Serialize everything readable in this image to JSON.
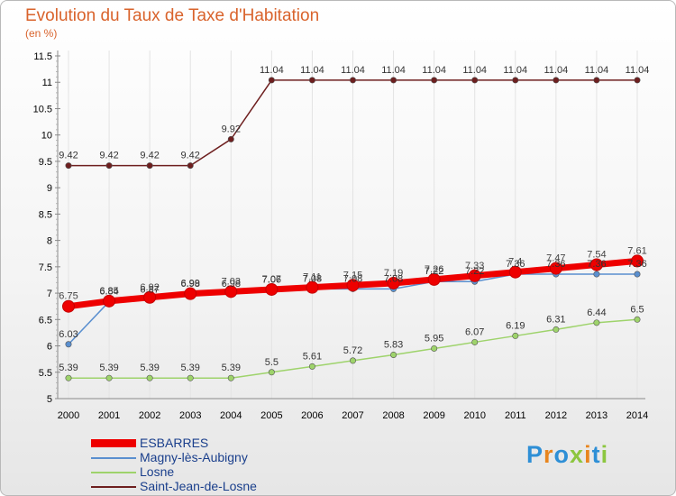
{
  "title": "Evolution du Taux de Taxe d'Habitation",
  "unit": "(en %)",
  "logo": "Proxiti",
  "chart_data": {
    "type": "line",
    "title": "Evolution du Taux de Taxe d'Habitation",
    "ylabel": "(en %)",
    "xlabel": "",
    "ylim": [
      5,
      11.5
    ],
    "yticks": [
      5,
      5.5,
      6,
      6.5,
      7,
      7.5,
      8,
      8.5,
      9,
      9.5,
      10,
      10.5,
      11,
      11.5
    ],
    "x": [
      2000,
      2001,
      2002,
      2003,
      2004,
      2005,
      2006,
      2007,
      2008,
      2009,
      2010,
      2011,
      2012,
      2013,
      2014
    ],
    "series": [
      {
        "name": "Saint-Jean-de-Losne",
        "color": "#6e1f1f",
        "values": [
          9.42,
          9.42,
          9.42,
          9.42,
          9.92,
          11.04,
          11.04,
          11.04,
          11.04,
          11.04,
          11.04,
          11.04,
          11.04,
          11.04,
          11.04
        ]
      },
      {
        "name": "Losne",
        "color": "#9ed36b",
        "values": [
          5.39,
          5.39,
          5.39,
          5.39,
          5.39,
          5.5,
          5.61,
          5.72,
          5.83,
          5.95,
          6.07,
          6.19,
          6.31,
          6.44,
          6.5
        ]
      },
      {
        "name": "Magny-lès-Aubigny",
        "color": "#5a8fcf",
        "values": [
          6.03,
          6.84,
          6.87,
          6.98,
          6.98,
          7.06,
          7.08,
          7.08,
          7.08,
          7.22,
          7.22,
          7.36,
          7.36,
          7.36,
          7.36
        ]
      },
      {
        "name": "ESBARRES",
        "color": "#ee0000",
        "values": [
          6.75,
          6.85,
          6.92,
          6.99,
          7.03,
          7.07,
          7.11,
          7.15,
          7.19,
          7.26,
          7.33,
          7.4,
          7.47,
          7.54,
          7.61
        ]
      }
    ],
    "legend": [
      "ESBARRES",
      "Magny-lès-Aubigny",
      "Losne",
      "Saint-Jean-de-Losne"
    ]
  },
  "logo_colors": [
    "#2e8fd6",
    "#e8851e",
    "#2e8fd6",
    "#8cc63f",
    "#e8851e",
    "#2e8fd6",
    "#8cc63f"
  ]
}
